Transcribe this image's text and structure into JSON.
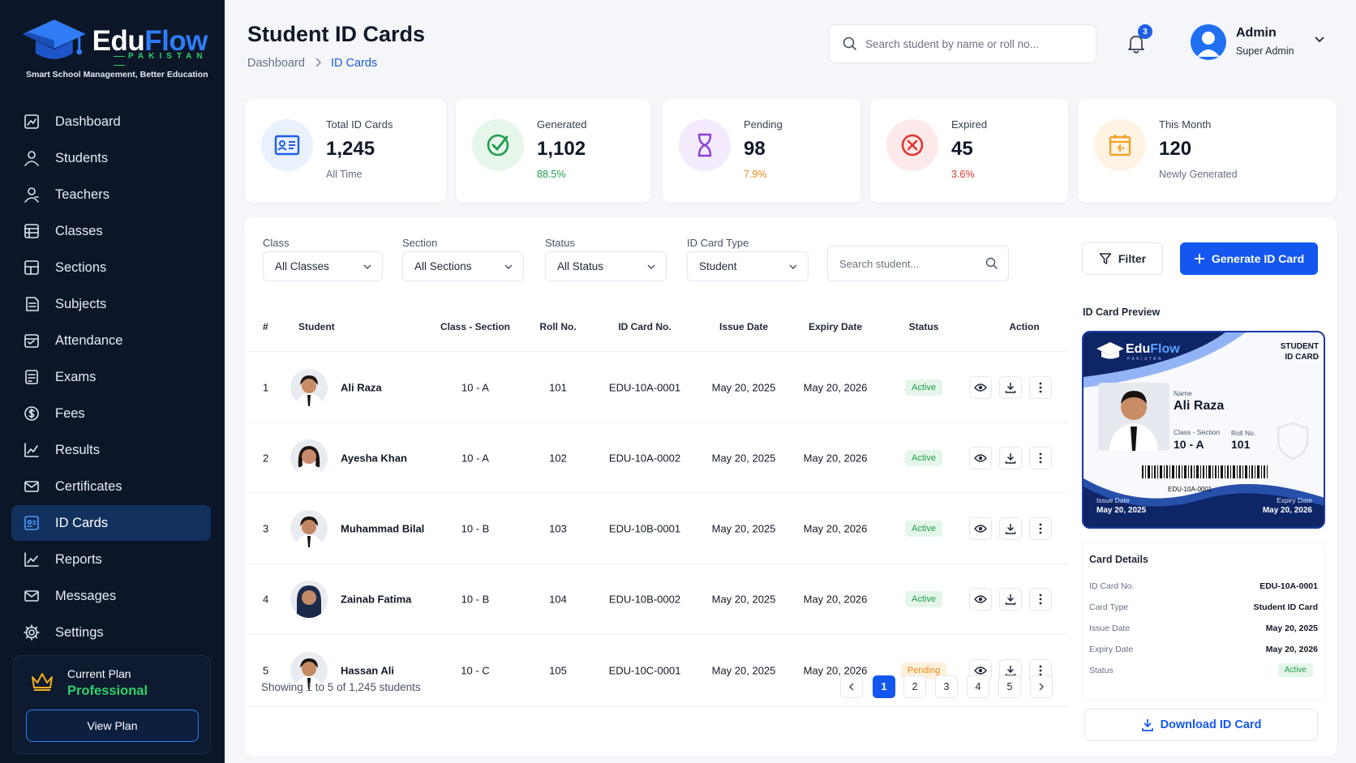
{
  "brand": {
    "name_part1": "Edu",
    "name_part2": "Flow",
    "country": "PAKISTAN",
    "tagline": "Smart School Management, Better Education"
  },
  "sidebar": {
    "items": [
      {
        "label": "Dashboard",
        "icon": "dashboard-icon"
      },
      {
        "label": "Students",
        "icon": "students-icon"
      },
      {
        "label": "Teachers",
        "icon": "teachers-icon"
      },
      {
        "label": "Classes",
        "icon": "classes-icon"
      },
      {
        "label": "Sections",
        "icon": "sections-icon"
      },
      {
        "label": "Subjects",
        "icon": "subjects-icon"
      },
      {
        "label": "Attendance",
        "icon": "attendance-icon"
      },
      {
        "label": "Exams",
        "icon": "exams-icon"
      },
      {
        "label": "Fees",
        "icon": "fees-icon"
      },
      {
        "label": "Results",
        "icon": "results-icon"
      },
      {
        "label": "Certificates",
        "icon": "certificates-icon"
      },
      {
        "label": "ID Cards",
        "icon": "id-cards-icon",
        "active": true
      },
      {
        "label": "Reports",
        "icon": "reports-icon"
      },
      {
        "label": "Messages",
        "icon": "messages-icon"
      },
      {
        "label": "Settings",
        "icon": "settings-icon"
      }
    ],
    "plan": {
      "label": "Current Plan",
      "value": "Professional",
      "button": "View Plan"
    }
  },
  "header": {
    "title": "Student ID Cards",
    "breadcrumb": [
      "Dashboard",
      "ID Cards"
    ],
    "search_placeholder": "Search student by name or roll no...",
    "notification_count": "3",
    "user_name": "Admin",
    "user_role": "Super Admin"
  },
  "stats": [
    {
      "label": "Total ID Cards",
      "value": "1,245",
      "sub": "All Time",
      "color": "#1f5fe8",
      "sub_color": "#667085"
    },
    {
      "label": "Generated",
      "value": "1,102",
      "sub": "88.5%",
      "color": "#1f9d4c",
      "sub_color": "#1f9d4c"
    },
    {
      "label": "Pending",
      "value": "98",
      "sub": "7.9%",
      "color": "#8b3fd9",
      "sub_color": "#e98a16"
    },
    {
      "label": "Expired",
      "value": "45",
      "sub": "3.6%",
      "color": "#e0342e",
      "sub_color": "#e0342e"
    },
    {
      "label": "This Month",
      "value": "120",
      "sub": "Newly Generated",
      "color": "#f2a32a",
      "sub_color": "#667085"
    }
  ],
  "filters": {
    "class": {
      "label": "Class",
      "value": "All Classes"
    },
    "section": {
      "label": "Section",
      "value": "All Sections"
    },
    "status": {
      "label": "Status",
      "value": "All Status"
    },
    "type": {
      "label": "ID Card Type",
      "value": "Student"
    },
    "search_placeholder": "Search student...",
    "filter_button": "Filter",
    "generate_button": "Generate ID Card"
  },
  "table": {
    "columns": [
      "#",
      "Student",
      "Class - Section",
      "Roll No.",
      "ID Card No.",
      "Issue Date",
      "Expiry Date",
      "Status",
      "Action"
    ],
    "rows": [
      {
        "num": "1",
        "name": "Ali Raza",
        "class": "10 - A",
        "roll": "101",
        "card": "EDU-10A-0001",
        "issue": "May 20, 2025",
        "expiry": "May 20, 2026",
        "status": "Active"
      },
      {
        "num": "2",
        "name": "Ayesha Khan",
        "class": "10 - A",
        "roll": "102",
        "card": "EDU-10A-0002",
        "issue": "May 20, 2025",
        "expiry": "May 20, 2026",
        "status": "Active"
      },
      {
        "num": "3",
        "name": "Muhammad Bilal",
        "class": "10 - B",
        "roll": "103",
        "card": "EDU-10B-0001",
        "issue": "May 20, 2025",
        "expiry": "May 20, 2026",
        "status": "Active"
      },
      {
        "num": "4",
        "name": "Zainab Fatima",
        "class": "10 - B",
        "roll": "104",
        "card": "EDU-10B-0002",
        "issue": "May 20, 2025",
        "expiry": "May 20, 2026",
        "status": "Active"
      },
      {
        "num": "5",
        "name": "Hassan Ali",
        "class": "10 - C",
        "roll": "105",
        "card": "EDU-10C-0001",
        "issue": "May 20, 2025",
        "expiry": "May 20, 2026",
        "status": "Pending"
      }
    ],
    "showing": "Showing 1 to 5 of 1,245 students",
    "pages": [
      "1",
      "2",
      "3",
      "4",
      "5"
    ]
  },
  "preview": {
    "title": "ID Card Preview",
    "card_label": "STUDENT\nID CARD",
    "name_label": "Name",
    "name": "Ali Raza",
    "class_label": "Class - Section",
    "class": "10 - A",
    "roll_label": "Roll No.",
    "roll": "101",
    "barcode_text": "EDU-10A-0001",
    "issue_label": "Issue Date",
    "issue": "May 20, 2025",
    "expiry_label": "Expiry Date",
    "expiry": "May 20, 2026"
  },
  "details": {
    "title": "Card Details",
    "fields": [
      {
        "key": "ID Card No.",
        "value": "EDU-10A-0001"
      },
      {
        "key": "Card Type",
        "value": "Student ID Card"
      },
      {
        "key": "Issue Date",
        "value": "May 20, 2025"
      },
      {
        "key": "Expiry Date",
        "value": "May 20, 2026"
      },
      {
        "key": "Status",
        "value": "Active"
      }
    ],
    "download_button": "Download ID Card"
  }
}
